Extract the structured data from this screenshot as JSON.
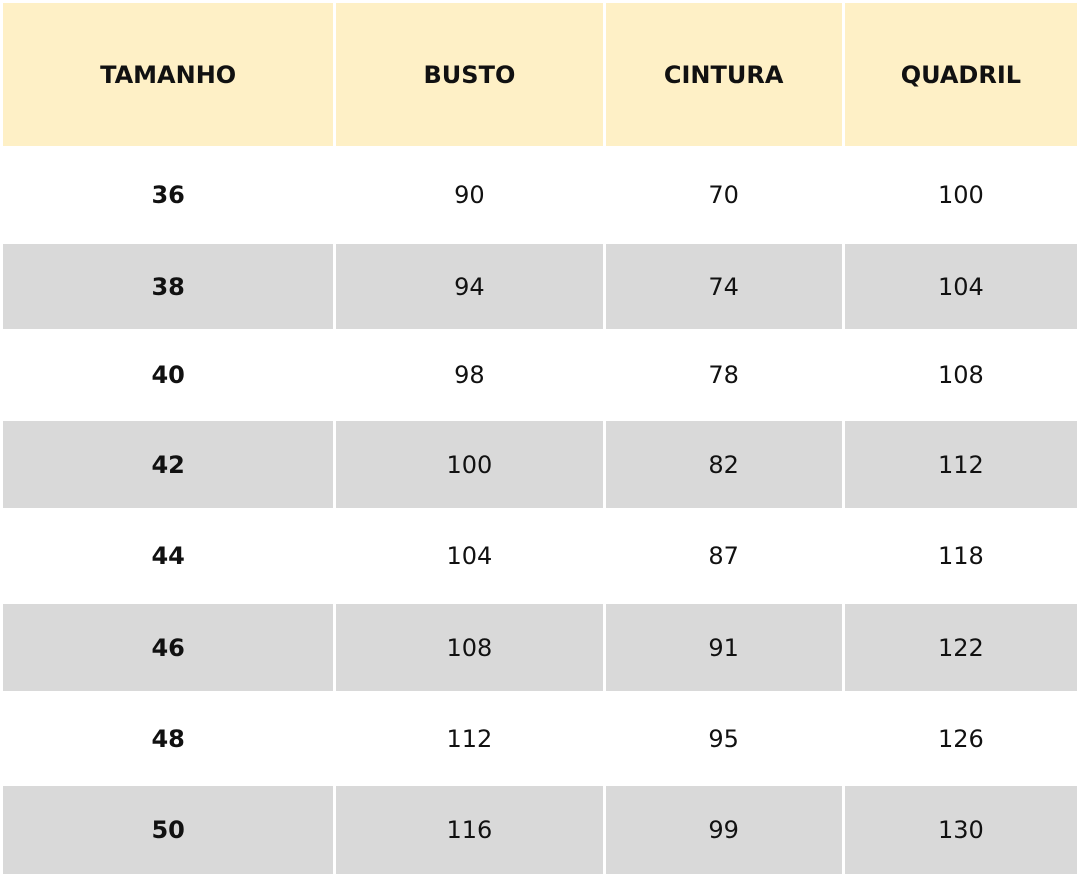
{
  "table": {
    "headers": [
      "TAMANHO",
      "BUSTO",
      "CINTURA",
      "QUADRIL"
    ],
    "rows": [
      [
        "36",
        "90",
        "70",
        "100"
      ],
      [
        "38",
        "94",
        "74",
        "104"
      ],
      [
        "40",
        "98",
        "78",
        "108"
      ],
      [
        "42",
        "100",
        "82",
        "112"
      ],
      [
        "44",
        "104",
        "87",
        "118"
      ],
      [
        "46",
        "108",
        "91",
        "122"
      ],
      [
        "48",
        "112",
        "95",
        "126"
      ],
      [
        "50",
        "116",
        "99",
        "130"
      ]
    ]
  },
  "colors": {
    "header_bg": "#fef0c6",
    "alt_row_bg": "#d9d9d9"
  }
}
